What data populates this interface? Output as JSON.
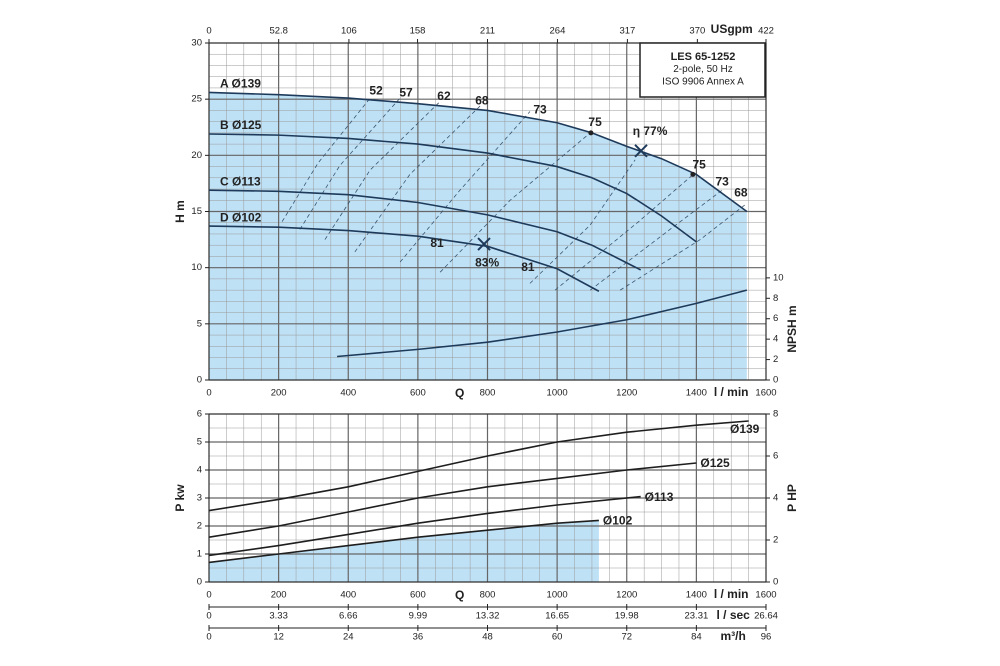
{
  "chart_data": [
    {
      "type": "line",
      "info_box": [
        "LES 65-1252",
        "2-pole, 50 Hz",
        "ISO 9906 Annex A"
      ],
      "xlabel": "Q",
      "x_unit_label": "l / min",
      "xlim": [
        0,
        1600
      ],
      "xticks": [
        0,
        200,
        400,
        600,
        800,
        1000,
        1200,
        1400,
        1600
      ],
      "x2label": "USgpm",
      "x2lim": [
        0,
        422
      ],
      "x2ticks": [
        0,
        52.8,
        106,
        158,
        211,
        264,
        317,
        370,
        422
      ],
      "ylabel": "H m",
      "ylim": [
        0,
        30
      ],
      "yticks": [
        0,
        5,
        10,
        15,
        20,
        25,
        30
      ],
      "y2label": "NPSH m",
      "y2lim": [
        0,
        33
      ],
      "y2ticks": [
        0,
        2,
        4,
        6,
        8,
        10
      ],
      "grid": true,
      "grid_minor": {
        "x": 50,
        "y": 1
      },
      "series_label_at": "start",
      "series": [
        {
          "name": "A Ø139",
          "color": "#1e3a5a",
          "fill": "#bfe1f6",
          "x": [
            0,
            200,
            400,
            600,
            800,
            1000,
            1100,
            1200,
            1300,
            1400,
            1545
          ],
          "values": [
            25.6,
            25.4,
            25.1,
            24.6,
            24.0,
            22.9,
            22.0,
            20.8,
            19.7,
            18.3,
            15.0
          ]
        },
        {
          "name": "B Ø125",
          "color": "#1e3a5a",
          "x": [
            0,
            200,
            400,
            600,
            800,
            1000,
            1100,
            1200,
            1300,
            1400
          ],
          "values": [
            21.9,
            21.8,
            21.5,
            21.0,
            20.2,
            19.0,
            18.0,
            16.6,
            14.6,
            12.3
          ]
        },
        {
          "name": "C Ø113",
          "color": "#1e3a5a",
          "x": [
            0,
            200,
            400,
            600,
            800,
            1000,
            1100,
            1240
          ],
          "values": [
            16.9,
            16.8,
            16.5,
            15.8,
            14.7,
            13.2,
            12.0,
            9.8
          ]
        },
        {
          "name": "D Ø102",
          "color": "#1e3a5a",
          "x": [
            0,
            200,
            400,
            600,
            800,
            1000,
            1120
          ],
          "values": [
            13.7,
            13.6,
            13.3,
            12.8,
            11.9,
            9.9,
            7.9
          ]
        },
        {
          "color": "#1e3a5a",
          "axis": "y2",
          "x": [
            368,
            600,
            800,
            1000,
            1200,
            1400,
            1545
          ],
          "values": [
            2.3,
            3.0,
            3.7,
            4.7,
            5.9,
            7.5,
            8.8
          ]
        }
      ],
      "efficiency_lines": {
        "color": "#3a5570",
        "lines": [
          {
            "x": [
              210,
              313,
              463
            ],
            "y": [
              14.1,
              19.3,
              25.1
            ]
          },
          {
            "x": [
              261,
              376,
              549
            ],
            "y": [
              13.4,
              19.1,
              25.1
            ]
          },
          {
            "x": [
              333,
              463,
              664
            ],
            "y": [
              12.5,
              18.7,
              24.8
            ]
          },
          {
            "x": [
              419,
              577,
              779
            ],
            "y": [
              11.4,
              18.3,
              24.4
            ]
          },
          {
            "x": [
              549,
              721,
              922
            ],
            "y": [
              10.5,
              16.9,
              23.9
            ]
          },
          {
            "x": [
              664,
              865,
              1095
            ],
            "y": [
              9.6,
              16.0,
              22.0
            ]
          },
          {
            "x": [
              922,
              1095,
              1224
            ],
            "y": [
              8.6,
              13.8,
              19.6
            ]
          },
          {
            "x": [
              994,
              1238,
              1391
            ],
            "y": [
              8.0,
              14.2,
              18.3
            ]
          },
          {
            "x": [
              1095,
              1324,
              1474
            ],
            "y": [
              8.0,
              13.4,
              16.9
            ]
          },
          {
            "x": [
              1181,
              1411,
              1540
            ],
            "y": [
              8.0,
              12.5,
              15.6
            ]
          }
        ]
      },
      "annotations": [
        {
          "text": "52",
          "x": 480,
          "y": 25.7
        },
        {
          "text": "57",
          "x": 566,
          "y": 25.5
        },
        {
          "text": "62",
          "x": 675,
          "y": 25.2
        },
        {
          "text": "68",
          "x": 784,
          "y": 24.8
        },
        {
          "text": "73",
          "x": 951,
          "y": 24.0
        },
        {
          "text": "75",
          "x": 1109,
          "y": 22.9
        },
        {
          "text": "η 77%",
          "x": 1267,
          "y": 22.1
        },
        {
          "text": "75",
          "x": 1408,
          "y": 19.1
        },
        {
          "text": "73",
          "x": 1474,
          "y": 17.6
        },
        {
          "text": "68",
          "x": 1528,
          "y": 16.6
        },
        {
          "text": "81",
          "x": 655,
          "y": 12.1
        },
        {
          "text": "83%",
          "x": 799,
          "y": 10.4
        },
        {
          "text": "81",
          "x": 916,
          "y": 10.0
        }
      ],
      "dots": {
        "x": [
          1097,
          1390
        ],
        "y": [
          22.0,
          18.3
        ]
      },
      "crosses": {
        "x": [
          1241,
          790
        ],
        "y": [
          20.4,
          12.1
        ]
      }
    },
    {
      "type": "line",
      "xlabel": "Q",
      "x_unit_label": "l / min",
      "xlim": [
        0,
        1600
      ],
      "xticks": [
        0,
        200,
        400,
        600,
        800,
        1000,
        1200,
        1400,
        1600
      ],
      "ylabel": "P kw",
      "ylim": [
        0,
        6
      ],
      "yticks": [
        0,
        1,
        2,
        3,
        4,
        5,
        6
      ],
      "y2label": "P HP",
      "y2lim": [
        0,
        8
      ],
      "y2ticks": [
        0,
        2,
        4,
        6,
        8
      ],
      "grid": true,
      "grid_minor": {
        "x": 50,
        "y": 0.5
      },
      "series_label_at": "end",
      "series": [
        {
          "name": "Ø139",
          "color": "#1e1e1e",
          "x": [
            0,
            200,
            400,
            600,
            800,
            1000,
            1200,
            1400,
            1550
          ],
          "values": [
            2.55,
            2.95,
            3.4,
            3.95,
            4.5,
            5.0,
            5.35,
            5.6,
            5.75
          ]
        },
        {
          "name": "Ø125",
          "color": "#1e1e1e",
          "x": [
            0,
            200,
            400,
            600,
            800,
            1000,
            1200,
            1400
          ],
          "values": [
            1.6,
            2.0,
            2.5,
            3.0,
            3.4,
            3.7,
            4.0,
            4.25
          ]
        },
        {
          "name": "Ø113",
          "color": "#1e1e1e",
          "x": [
            0,
            200,
            400,
            600,
            800,
            1000,
            1240
          ],
          "values": [
            0.95,
            1.3,
            1.7,
            2.1,
            2.45,
            2.75,
            3.05
          ]
        },
        {
          "name": "Ø102",
          "color": "#1e1e1e",
          "fill": "#bfe1f6",
          "x": [
            0,
            200,
            400,
            600,
            800,
            1000,
            1120
          ],
          "values": [
            0.7,
            1.0,
            1.3,
            1.6,
            1.85,
            2.1,
            2.2
          ]
        }
      ],
      "extra_x_axes": [
        {
          "label": "l / sec",
          "lim": [
            0,
            26.64
          ],
          "ticks": [
            0,
            3.33,
            6.66,
            9.99,
            13.32,
            16.65,
            19.98,
            23.31,
            26.64
          ]
        },
        {
          "label": "m³/h",
          "lim": [
            0,
            96
          ],
          "ticks": [
            0,
            12,
            24,
            36,
            48,
            60,
            72,
            84,
            96
          ]
        }
      ]
    }
  ]
}
